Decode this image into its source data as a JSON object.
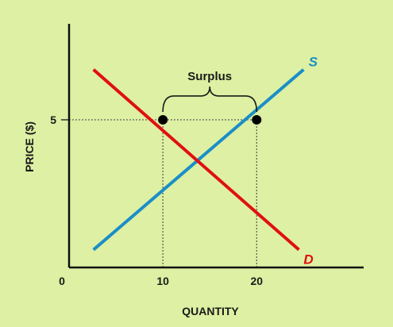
{
  "chart_data": {
    "type": "line",
    "xlabel": "QUANTITY",
    "ylabel": "PRICE ($)",
    "x_origin_label": "0",
    "x_ticks": [
      {
        "value": 10,
        "label": "10"
      },
      {
        "value": 20,
        "label": "20"
      }
    ],
    "y_ticks": [
      {
        "value": 5,
        "label": "5"
      }
    ],
    "xlim": [
      0,
      31.4
    ],
    "ylim": [
      0,
      8.25
    ],
    "grid": false,
    "series": [
      {
        "name": "S",
        "color": "#1a8ec8",
        "x": [
          2.6,
          25.0
        ],
        "y": [
          0.6,
          6.7
        ]
      },
      {
        "name": "D",
        "color": "#e01010",
        "x": [
          2.6,
          24.5
        ],
        "y": [
          6.7,
          0.6
        ]
      }
    ],
    "points": [
      {
        "x": 10,
        "y": 5
      },
      {
        "x": 20,
        "y": 5
      }
    ],
    "price_line": 5,
    "annotation": {
      "text": "Surplus",
      "from_x": 10,
      "to_x": 20
    }
  }
}
